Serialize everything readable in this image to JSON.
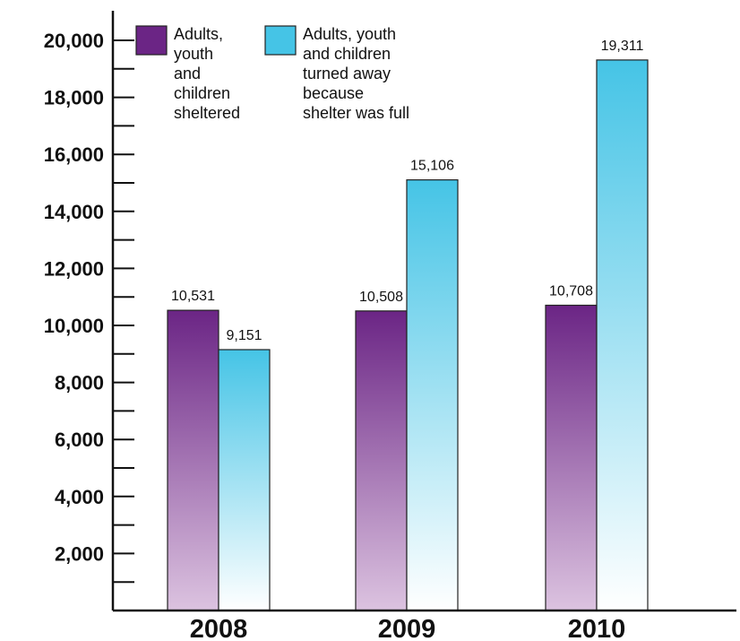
{
  "chart_data": {
    "type": "bar",
    "title": "",
    "xlabel": "",
    "ylabel": "",
    "categories": [
      "2008",
      "2009",
      "2010"
    ],
    "series": [
      {
        "name": "Adults, youth and children sheltered",
        "legend_lines": [
          "Adults,",
          "youth",
          "and",
          "children",
          "sheltered"
        ],
        "values": [
          10531,
          10508,
          10708
        ],
        "value_labels": [
          "10,531",
          "10,508",
          "10,708"
        ],
        "color_top": "#6b2585",
        "color_bottom": "#dcc3e0"
      },
      {
        "name": "Adults, youth and children turned away because shelter was full",
        "legend_lines": [
          "Adults, youth",
          "and children",
          "turned away",
          "because",
          "shelter was full"
        ],
        "values": [
          9151,
          15106,
          19311
        ],
        "value_labels": [
          "9,151",
          "15,106",
          "19,311"
        ],
        "color_top": "#45c4e6",
        "color_bottom": "#ffffff"
      }
    ],
    "ylim": [
      0,
      20000
    ],
    "yticks": [
      2000,
      4000,
      6000,
      8000,
      10000,
      12000,
      14000,
      16000,
      18000,
      20000
    ],
    "ytick_labels": [
      "2,000",
      "4,000",
      "6,000",
      "8,000",
      "10,000",
      "12,000",
      "14,000",
      "16,000",
      "18,000",
      "20,000"
    ],
    "minor_tick_step": 1000,
    "grid": false,
    "legend_position": "top-left"
  }
}
